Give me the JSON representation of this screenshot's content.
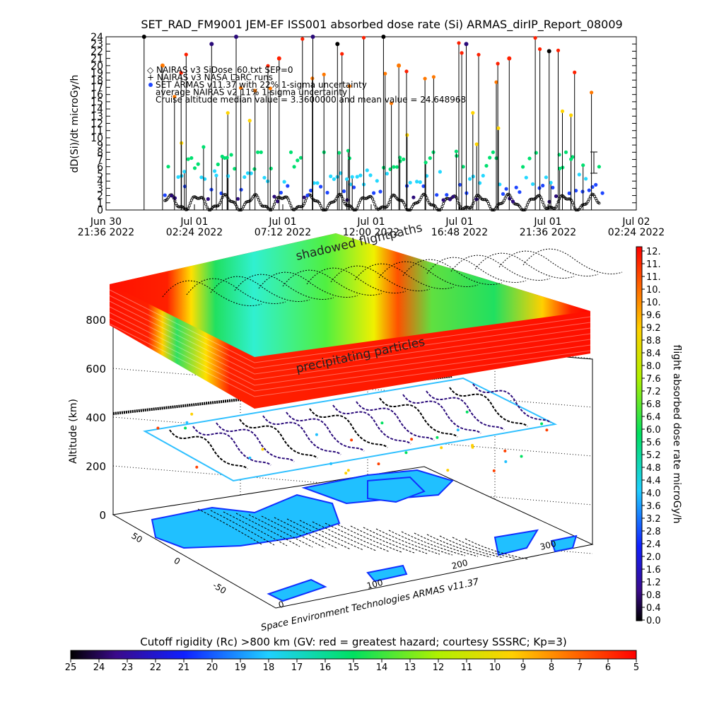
{
  "title": "SET_RAD_FM9001  JEM-EF ISS001 absorbed dose rate (Si) ARMAS_dirIP_Report_08009",
  "top_chart": {
    "ylabel": "dD(Si)/dt microGy/h",
    "legend": [
      "◇ NAIRAS v3 SiDose_60.txt SEP=0",
      "+ NAIRAS v3 NASA LaRC runs",
      "SET ARMAS v11.37 with 22% 1-sigma uncertainty",
      "average NAIRAS v2 11% 1-sigma uncertainty",
      "Cruise altitude median value = 3.3600000 and mean value = 24.648968"
    ],
    "x_ticks": [
      {
        "line1": "Jun 30",
        "line2": "21:36 2022"
      },
      {
        "line1": "Jul 01",
        "line2": "02:24 2022"
      },
      {
        "line1": "Jul 01",
        "line2": "07:12 2022"
      },
      {
        "line1": "Jul 01",
        "line2": "12:00 2022"
      },
      {
        "line1": "Jul 01",
        "line2": "16:48 2022"
      },
      {
        "line1": "Jul 01",
        "line2": "21:36 2022"
      },
      {
        "line1": "Jul 02",
        "line2": "02:24 2022"
      }
    ]
  },
  "chart_data": [
    {
      "type": "scatter",
      "title": "SET_RAD_FM9001  JEM-EF ISS001 absorbed dose rate (Si) ARMAS_dirIP_Report_08009",
      "ylabel": "dD(Si)/dt microGy/h",
      "ylim": [
        0,
        24
      ],
      "y_ticks": [
        0,
        1,
        2,
        3,
        4,
        5,
        6,
        7,
        8,
        9,
        10,
        11,
        12,
        13,
        14,
        15,
        16,
        17,
        18,
        19,
        20,
        21,
        22,
        23,
        24
      ],
      "x_range": [
        "Jun 30 21:36 2022",
        "Jul 02 02:24 2022"
      ],
      "series_colors": [
        "#2a0a7a",
        "#1e46ff",
        "#24d8ff",
        "#00e070",
        "#ffd400",
        "#ff7800",
        "#ff2000"
      ],
      "points_description": "dose-rate samples 0-24 microGy/h, mostly 0-8 with periodic spikes",
      "spikes": [
        {
          "x": "Jun 30 23:40 2022",
          "y": 24,
          "color": "#000000"
        },
        {
          "x": "Jul 01 00:40 2022",
          "y": 20,
          "color": "#ff7800"
        },
        {
          "x": "Jul 01 03:20 2022",
          "y": 23,
          "color": "#2a0a7a"
        },
        {
          "x": "Jul 01 04:40 2022",
          "y": 24,
          "color": "#2a0a7a"
        },
        {
          "x": "Jul 01 07:00 2022",
          "y": 21,
          "color": "#ff2000"
        },
        {
          "x": "Jul 01 08:50 2022",
          "y": 24,
          "color": "#2a0a7a"
        },
        {
          "x": "Jul 01 10:10 2022",
          "y": 23,
          "color": "#000000"
        },
        {
          "x": "Jul 01 12:40 2022",
          "y": 24,
          "color": "#000000"
        },
        {
          "x": "Jul 01 13:30 2022",
          "y": 20,
          "color": "#ff7800"
        },
        {
          "x": "Jul 01 17:10 2022",
          "y": 23,
          "color": "#2a0a7a"
        },
        {
          "x": "Jul 01 19:30 2022",
          "y": 21,
          "color": "#ff2000"
        },
        {
          "x": "Jul 01 21:40 2022",
          "y": 22,
          "color": "#000000"
        }
      ]
    },
    {
      "type": "heatmap",
      "title": "",
      "zlabel": "Altitude (km)",
      "z_ticks": [
        0,
        200,
        400,
        600,
        800
      ],
      "x_ticks": [
        0,
        100,
        200,
        300
      ],
      "y_ticks": [
        -50,
        0,
        50
      ],
      "annotations": [
        "shadowed flightpaths",
        "precipitating particles"
      ],
      "credit": "Space Environment Technologies ARMAS v11.37"
    },
    {
      "type": "colorbar",
      "label": "flight absorbed dose rate microGy/h",
      "ticks": [
        "12.",
        "11.",
        "11.",
        "10.",
        "10.",
        "9.6",
        "9.2",
        "8.8",
        "8.4",
        "8.0",
        "7.6",
        "7.2",
        "6.8",
        "6.4",
        "6.0",
        "5.6",
        "5.2",
        "4.8",
        "4.4",
        "4.0",
        "3.6",
        "3.2",
        "2.8",
        "2.4",
        "2.0",
        "1.6",
        "1.2",
        "0.8",
        "0.4",
        "0.0"
      ]
    },
    {
      "type": "colorbar",
      "label": "Cutoff rigidity (Rc) >800 km (GV: red = greatest hazard; courtesy SSSRC; Kp=3)",
      "ticks": [
        "25",
        "24",
        "23",
        "22",
        "21",
        "20",
        "19",
        "18",
        "17",
        "16",
        "15",
        "14",
        "13",
        "12",
        "11",
        "10",
        "9",
        "8",
        "7",
        "6",
        "5"
      ]
    }
  ],
  "scene": {
    "zlabel": "Altitude (km)",
    "z_ticks": [
      "0",
      "200",
      "400",
      "600",
      "800"
    ],
    "x_ticks": [
      "0",
      "100",
      "200",
      "300"
    ],
    "y_ticks": [
      "-50",
      "0",
      "50"
    ],
    "annotation_top": "shadowed flightpaths",
    "annotation_mid": "precipitating particles",
    "credit": "Space Environment Technologies ARMAS v11.37"
  },
  "dose_colorbar": {
    "label": "flight absorbed dose rate microGy/h",
    "ticks": [
      "12.",
      "11.",
      "11.",
      "10.",
      "10.",
      "9.6",
      "9.2",
      "8.8",
      "8.4",
      "8.0",
      "7.6",
      "7.2",
      "6.8",
      "6.4",
      "6.0",
      "5.6",
      "5.2",
      "4.8",
      "4.4",
      "4.0",
      "3.6",
      "3.2",
      "2.8",
      "2.4",
      "2.0",
      "1.6",
      "1.2",
      "0.8",
      "0.4",
      "0.0"
    ]
  },
  "rigidity_colorbar": {
    "label": "Cutoff rigidity (Rc) >800 km (GV: red = greatest hazard; courtesy SSSRC; Kp=3)",
    "ticks": [
      "25",
      "24",
      "23",
      "22",
      "21",
      "20",
      "19",
      "18",
      "17",
      "16",
      "15",
      "14",
      "13",
      "12",
      "11",
      "10",
      "9",
      "8",
      "7",
      "6",
      "5"
    ]
  }
}
